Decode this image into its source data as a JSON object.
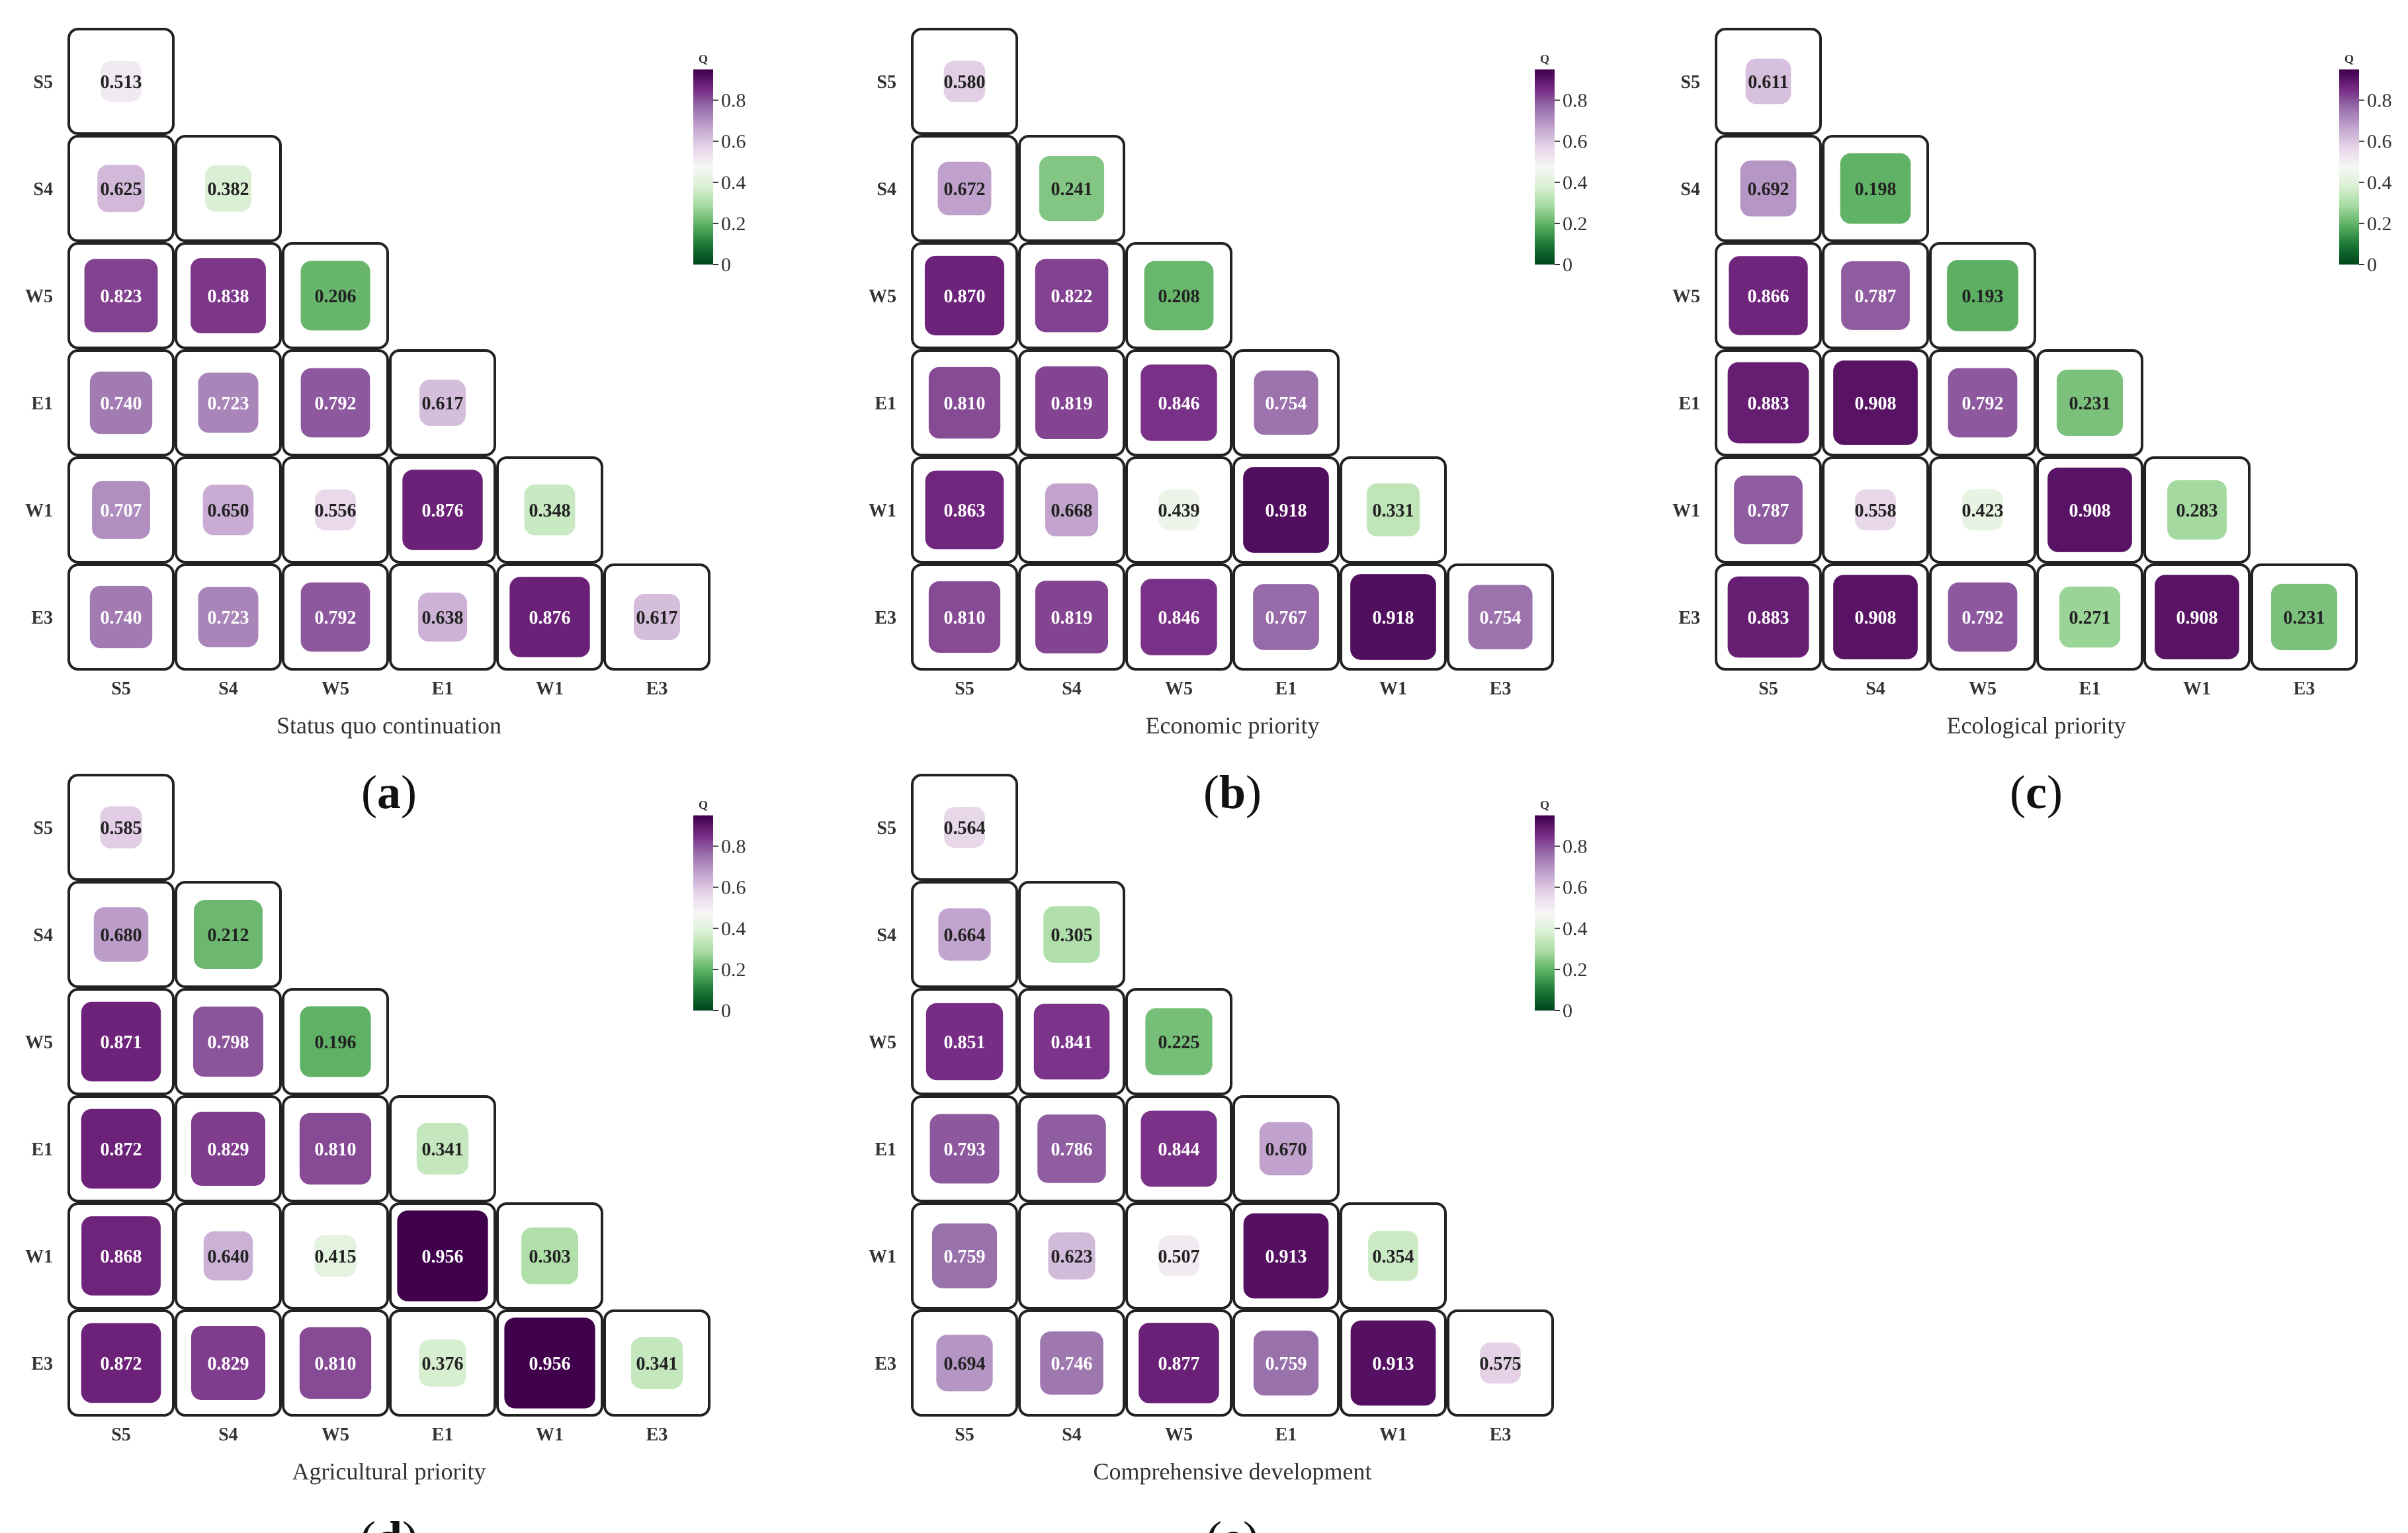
{
  "figure": {
    "colors": {
      "scale": [
        "#00441b",
        "#1b7837",
        "#5aae61",
        "#a6dba0",
        "#d9f0d3",
        "#f7f7f7",
        "#e7d4e8",
        "#c2a5cf",
        "#9970ab",
        "#762a83",
        "#40004b"
      ],
      "cell_border": "#222222",
      "text_dark": "#222222",
      "text_light": "#ffffff"
    },
    "colorbar": {
      "title": "Q",
      "ticks": [
        0,
        0.2,
        0.4,
        0.6,
        0.8
      ],
      "range": [
        0,
        0.95
      ]
    }
  },
  "chart_data": [
    {
      "type": "heatmap",
      "panel": "(a)",
      "panel_letter": "a",
      "title": "Status quo continuation",
      "rows": [
        "S5",
        "S4",
        "W5",
        "E1",
        "W1",
        "E3"
      ],
      "columns": [
        "S5",
        "S4",
        "W5",
        "E1",
        "W1",
        "E3"
      ],
      "values": [
        [
          0.513
        ],
        [
          0.625,
          0.382
        ],
        [
          0.823,
          0.838,
          0.206
        ],
        [
          0.74,
          0.723,
          0.792,
          0.617
        ],
        [
          0.707,
          0.65,
          0.556,
          0.876,
          0.348
        ],
        [
          0.74,
          0.723,
          0.792,
          0.638,
          0.876,
          0.617
        ]
      ],
      "layout": "lower-triangle",
      "colorbar_title": "Q"
    },
    {
      "type": "heatmap",
      "panel": "(b)",
      "panel_letter": "b",
      "title": "Economic priority",
      "rows": [
        "S5",
        "S4",
        "W5",
        "E1",
        "W1",
        "E3"
      ],
      "columns": [
        "S5",
        "S4",
        "W5",
        "E1",
        "W1",
        "E3"
      ],
      "values": [
        [
          0.58
        ],
        [
          0.672,
          0.241
        ],
        [
          0.87,
          0.822,
          0.208
        ],
        [
          0.81,
          0.819,
          0.846,
          0.754
        ],
        [
          0.863,
          0.668,
          0.439,
          0.918,
          0.331
        ],
        [
          0.81,
          0.819,
          0.846,
          0.767,
          0.918,
          0.754
        ]
      ],
      "layout": "lower-triangle",
      "colorbar_title": "Q"
    },
    {
      "type": "heatmap",
      "panel": "(c)",
      "panel_letter": "c",
      "title": "Ecological priority",
      "rows": [
        "S5",
        "S4",
        "W5",
        "E1",
        "W1",
        "E3"
      ],
      "columns": [
        "S5",
        "S4",
        "W5",
        "E1",
        "W1",
        "E3"
      ],
      "values": [
        [
          0.611
        ],
        [
          0.692,
          0.198
        ],
        [
          0.866,
          0.787,
          0.193
        ],
        [
          0.883,
          0.908,
          0.792,
          0.231
        ],
        [
          0.787,
          0.558,
          0.423,
          0.908,
          0.283
        ],
        [
          0.883,
          0.908,
          0.792,
          0.271,
          0.908,
          0.231
        ]
      ],
      "layout": "lower-triangle",
      "colorbar_title": "Q"
    },
    {
      "type": "heatmap",
      "panel": "(d)",
      "panel_letter": "d",
      "title": "Agricultural priority",
      "rows": [
        "S5",
        "S4",
        "W5",
        "E1",
        "W1",
        "E3"
      ],
      "columns": [
        "S5",
        "S4",
        "W5",
        "E1",
        "W1",
        "E3"
      ],
      "values": [
        [
          0.585
        ],
        [
          0.68,
          0.212
        ],
        [
          0.871,
          0.798,
          0.196
        ],
        [
          0.872,
          0.829,
          0.81,
          0.341
        ],
        [
          0.868,
          0.64,
          0.415,
          0.956,
          0.303
        ],
        [
          0.872,
          0.829,
          0.81,
          0.376,
          0.956,
          0.341
        ]
      ],
      "layout": "lower-triangle",
      "colorbar_title": "Q"
    },
    {
      "type": "heatmap",
      "panel": "(e)",
      "panel_letter": "e",
      "title": "Comprehensive development",
      "rows": [
        "S5",
        "S4",
        "W5",
        "E1",
        "W1",
        "E3"
      ],
      "columns": [
        "S5",
        "S4",
        "W5",
        "E1",
        "W1",
        "E3"
      ],
      "values": [
        [
          0.564
        ],
        [
          0.664,
          0.305
        ],
        [
          0.851,
          0.841,
          0.225
        ],
        [
          0.793,
          0.786,
          0.844,
          0.67
        ],
        [
          0.759,
          0.623,
          0.507,
          0.913,
          0.354
        ],
        [
          0.694,
          0.746,
          0.877,
          0.759,
          0.913,
          0.575
        ]
      ],
      "layout": "lower-triangle",
      "colorbar_title": "Q"
    }
  ]
}
